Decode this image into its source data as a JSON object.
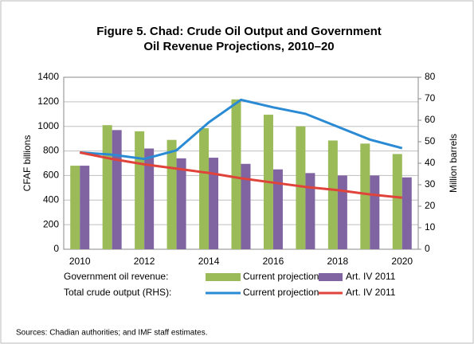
{
  "chart_data": {
    "type": "bar",
    "title": [
      "Figure 5. Chad: Crude Oil Output and Government",
      "Oil Revenue Projections, 2010–20"
    ],
    "categories": [
      "2010",
      null,
      "2012",
      null,
      "2014",
      null,
      "2016",
      null,
      "2018",
      null,
      "2020"
    ],
    "ylabel": "CFAF billions",
    "y2label": "Million barrels",
    "ylim": [
      0,
      1400
    ],
    "yticks": [
      0,
      200,
      400,
      600,
      800,
      1000,
      1200,
      1400
    ],
    "y2lim": [
      0,
      80
    ],
    "y2ticks": [
      0,
      10,
      20,
      30,
      40,
      50,
      60,
      70,
      80
    ],
    "grid": true,
    "legend_labels": [
      "Government oil revenue:",
      "Total crude output (RHS):"
    ],
    "series": [
      {
        "name": "Current projection",
        "type": "bar",
        "color": "#9bbb59",
        "values": [
          680,
          1010,
          960,
          890,
          985,
          1220,
          1095,
          1000,
          885,
          860,
          775
        ]
      },
      {
        "name": "Art. IV 2011",
        "type": "bar",
        "color": "#8064a2",
        "values": [
          680,
          970,
          820,
          740,
          745,
          695,
          650,
          620,
          600,
          600,
          585
        ]
      },
      {
        "name": "Current projection",
        "type": "line",
        "axis": "y2",
        "color": "#2a8ad4",
        "values": [
          45,
          44,
          42,
          46,
          59,
          69.5,
          66,
          63,
          57,
          51,
          47
        ]
      },
      {
        "name": "Art. IV 2011",
        "type": "line",
        "axis": "y2",
        "color": "#e0433a",
        "values": [
          45,
          42,
          39.5,
          37.5,
          35.5,
          33,
          31,
          29,
          27.5,
          25.5,
          24
        ]
      }
    ],
    "source": "Sources: Chadian authorities; and IMF staff estimates."
  }
}
